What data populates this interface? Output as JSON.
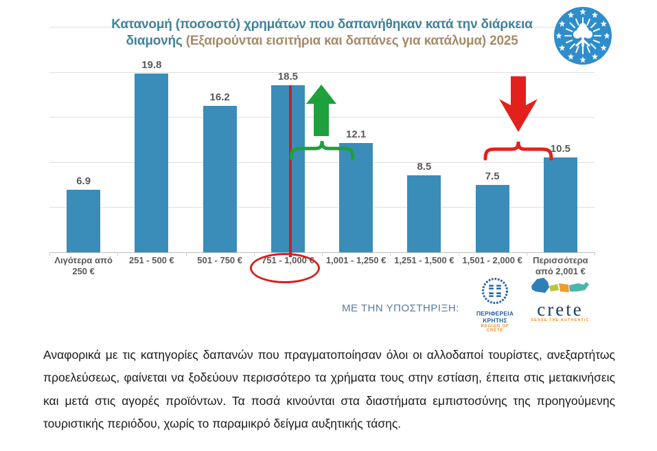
{
  "header": {
    "title_line1": "Κατανομή (ποσοστό) χρημάτων που δαπανήθηκαν κατά την διάρκεια",
    "title_line2_part1": "διαμονής",
    "title_line2_part2": "(Εξαιρούνται εισιτήρια και δαπάνες για κατάλυμα) 2025",
    "title_color_teal": "#3f8399",
    "title_color_brown": "#a68a6a"
  },
  "chart_data": {
    "type": "bar",
    "title": "Κατανομή (ποσοστό) χρημάτων που δαπανήθηκαν κατά την διάρκεια διαμονής (Εξαιρούνται εισιτήρια και δαπάνες για κατάλυμα) 2025",
    "categories": [
      "Λιγότερα από 250 €",
      "251 - 500 €",
      "501 - 750 €",
      "751 - 1,000 €",
      "1,001 - 1,250 €",
      "1,251 - 1,500 €",
      "1,501 - 2,000 €",
      "Περισσότερα από 2,001 €"
    ],
    "values": [
      6.9,
      19.8,
      16.2,
      18.5,
      12.1,
      8.5,
      7.5,
      10.5
    ],
    "xlabel": "",
    "ylabel": "",
    "ylim": [
      0,
      25
    ],
    "gridline_values": [
      5,
      10,
      15,
      20,
      25
    ],
    "grid": true,
    "legend": false,
    "bar_color": "#3a8db8",
    "label_color": "#595959",
    "annotations": {
      "highlighted_category": "751 - 1,000 €",
      "highlight_line_color": "#c71f25",
      "highlight_ellipse_color": "#d6201f",
      "up_arrow_color": "#1fa03c",
      "up_arrow_between": [
        "751 - 1,000 €",
        "1,001 - 1,250 €"
      ],
      "down_arrow_color": "#e3211c",
      "down_arrow_between": [
        "1,501 - 2,000 €",
        "Περισσότερα από 2,001 €"
      ]
    }
  },
  "support": {
    "label": "ΜΕ ΤΗΝ ΥΠΟΣΤΗΡΙΞΗ:"
  },
  "logos": {
    "region_crete": {
      "title": "ΠΕΡΙΦΕΡΕΙΑ ΚΡΗΤΗΣ",
      "subtitle": "REGION OF CRETE"
    },
    "crete_brand": {
      "name": "crete",
      "tagline": "SENSE THE AUTHENTIC"
    }
  },
  "body_text": "Αναφορικά με τις κατηγορίες δαπανών που πραγματοποίησαν όλοι οι αλλοδαποί τουρίστες, ανεξαρτήτως προελεύσεως, φαίνεται να ξοδεύουν περισσότερο τα χρήματα τους στην εστίαση, έπειτα στις μετακινήσεις και μετά στις αγορές προϊόντων. Τα ποσά κινούνται στα διαστήματα εμπιστοσύνης της προηγούμενης τουριστικής περιόδου, χωρίς το παραμικρό δείγμα αυξητικής τάσης."
}
